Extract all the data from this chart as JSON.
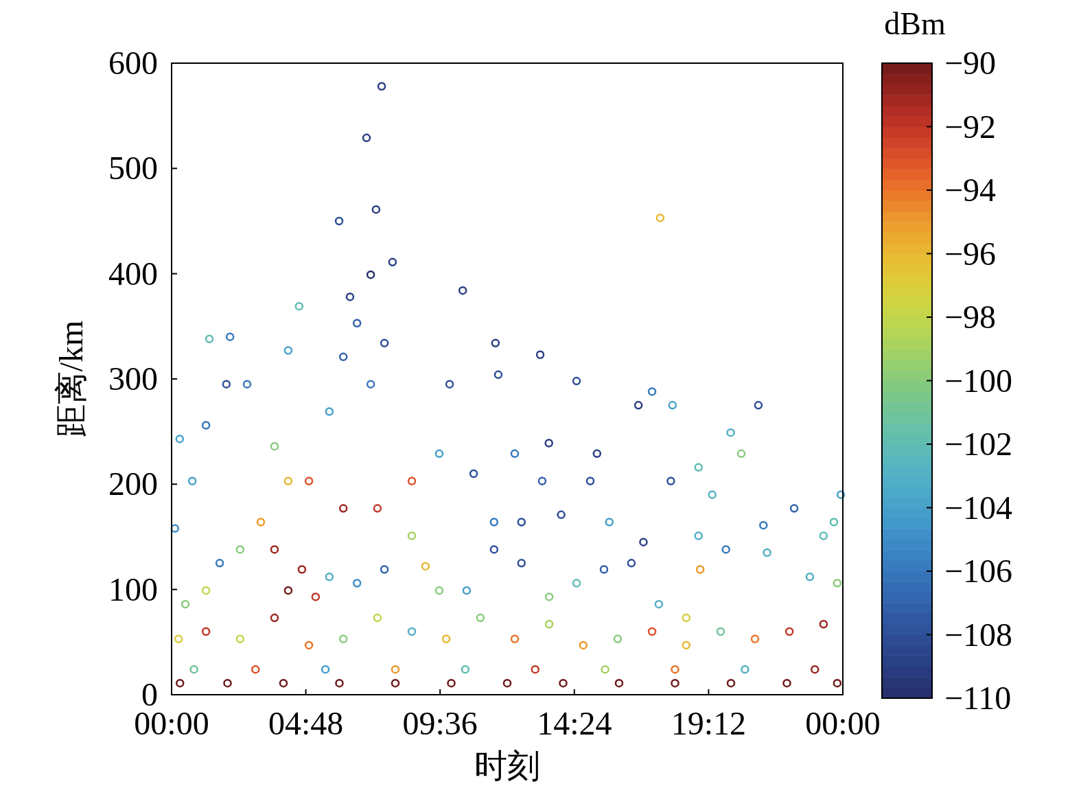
{
  "chart_data": {
    "type": "scatter",
    "xlabel": "时刻",
    "ylabel": "距离/km",
    "clabel": "dBm",
    "marker": "circle",
    "grid": false,
    "xlim": [
      0,
      24
    ],
    "ylim": [
      0,
      600
    ],
    "xticks": [
      {
        "value": 0,
        "label": "00:00"
      },
      {
        "value": 4.8,
        "label": "04:48"
      },
      {
        "value": 9.6,
        "label": "09:36"
      },
      {
        "value": 14.4,
        "label": "14:24"
      },
      {
        "value": 19.2,
        "label": "19:12"
      },
      {
        "value": 24,
        "label": "00:00"
      }
    ],
    "yticks": [
      0,
      100,
      200,
      300,
      400,
      500,
      600
    ],
    "clim": [
      -110,
      -90
    ],
    "cticks": [
      {
        "value": -110,
        "label": "−110"
      },
      {
        "value": -108,
        "label": "−108"
      },
      {
        "value": -106,
        "label": "−106"
      },
      {
        "value": -104,
        "label": "−104"
      },
      {
        "value": -102,
        "label": "−102"
      },
      {
        "value": -100,
        "label": "−100"
      },
      {
        "value": -98,
        "label": "−98"
      },
      {
        "value": -96,
        "label": "−96"
      },
      {
        "value": -94,
        "label": "−94"
      },
      {
        "value": -92,
        "label": "−92"
      },
      {
        "value": -90,
        "label": "−90"
      }
    ],
    "series": [
      {
        "x": [
          7.51,
          6.97,
          7.31,
          5.99,
          7.9,
          7.12,
          17.47,
          10.41,
          4.56,
          1.35,
          11.58,
          13.18,
          11.68,
          14.48,
          16.69,
          17.91,
          20.98,
          17.18,
          9.94,
          6.63,
          7.61,
          7.12,
          6.14,
          5.64,
          2.7,
          1.96,
          1.23,
          0.29,
          0.74,
          3.68,
          4.17,
          4.91,
          6.14,
          7.36,
          8.59,
          9.57,
          10.8,
          12.27,
          13.49,
          14.97,
          15.21,
          13.25,
          11.53,
          12.51,
          13.93,
          15.65,
          16.87,
          17.85,
          18.84,
          19.33,
          20.37,
          19.99,
          18.84,
          19.82,
          21.29,
          21.16,
          22.26,
          23.31,
          23.93,
          23.68,
          22.82,
          23.8,
          18.9,
          18.4,
          17.42,
          16.44,
          15.46,
          14.48,
          13.5,
          12.51,
          11.53,
          10.55,
          9.57,
          9.08,
          8.59,
          7.61,
          6.63,
          5.64,
          4.66,
          5.15,
          3.68,
          3.19,
          2.45,
          1.72,
          1.23,
          0.49,
          0.12,
          0.25,
          1.23,
          2.45,
          3.68,
          4.17,
          4.91,
          6.14,
          7.36,
          8.59,
          9.82,
          11.04,
          12.27,
          13.5,
          14.72,
          15.95,
          17.18,
          18.4,
          19.63,
          20.86,
          22.09,
          23.31,
          0.3,
          2,
          4,
          6,
          8,
          10,
          12,
          14,
          16,
          18,
          20,
          22,
          23.8,
          0.8,
          3,
          5.5,
          8,
          10.5,
          13,
          15.5,
          18,
          20.5,
          23,
          6.38,
          4.17,
          2.09
        ],
        "values": [
          578,
          529,
          461,
          450,
          411,
          399,
          453,
          384,
          369,
          338,
          334,
          323,
          304,
          298,
          275,
          275,
          275,
          288,
          295,
          353,
          334,
          295,
          321,
          269,
          295,
          295,
          256,
          243,
          203,
          236,
          203,
          203,
          177,
          177,
          203,
          229,
          210,
          229,
          239,
          203,
          229,
          203,
          164,
          164,
          171,
          164,
          145,
          203,
          216,
          190,
          229,
          249,
          151,
          138,
          135,
          161,
          177,
          151,
          190,
          164,
          112,
          106,
          119,
          73,
          86,
          125,
          119,
          106,
          93,
          125,
          138,
          99,
          99,
          122,
          151,
          119,
          106,
          112,
          119,
          93,
          138,
          164,
          138,
          125,
          99,
          86,
          158,
          53,
          60,
          53,
          73,
          99,
          47,
          53,
          73,
          60,
          53,
          73,
          53,
          67,
          47,
          53,
          60,
          47,
          60,
          53,
          60,
          67,
          11,
          11,
          11,
          11,
          11,
          11,
          11,
          11,
          11,
          11,
          11,
          11,
          11,
          24,
          24,
          24,
          24,
          24,
          24,
          24,
          24,
          24,
          24,
          378,
          327,
          340
        ],
        "cvalues": [
          -109,
          -109,
          -109,
          -108,
          -109,
          -110,
          -96,
          -109,
          -102,
          -102,
          -109,
          -109,
          -108,
          -108,
          -109,
          -104,
          -108,
          -106,
          -108,
          -107,
          -108,
          -106,
          -107,
          -104,
          -106,
          -108,
          -106,
          -104,
          -104,
          -100,
          -96,
          -93,
          -91,
          -92,
          -93,
          -104,
          -108,
          -106,
          -109,
          -108,
          -109,
          -107,
          -106,
          -108,
          -108,
          -104,
          -109,
          -108,
          -102,
          -103,
          -100,
          -103,
          -103,
          -106,
          -103,
          -106,
          -107,
          -102,
          -104,
          -102,
          -103,
          -100,
          -95,
          -97,
          -103,
          -108,
          -107,
          -102,
          -100,
          -108,
          -108,
          -104,
          -100,
          -96,
          -99,
          -107,
          -105,
          -103,
          -91,
          -92,
          -91,
          -95,
          -100,
          -106,
          -98,
          -100,
          -105,
          -97,
          -92,
          -98,
          -91,
          -90,
          -94,
          -100,
          -98,
          -103,
          -96,
          -100,
          -94,
          -99,
          -95,
          -100,
          -93,
          -96,
          -101,
          -94,
          -92,
          -91,
          -90,
          -90,
          -90,
          -90,
          -90,
          -90,
          -90,
          -90,
          -90,
          -90,
          -90,
          -90,
          -90,
          -101,
          -93,
          -104,
          -95,
          -102,
          -92,
          -99,
          -94,
          -103,
          -91,
          -109,
          -104,
          -106
        ]
      }
    ]
  }
}
